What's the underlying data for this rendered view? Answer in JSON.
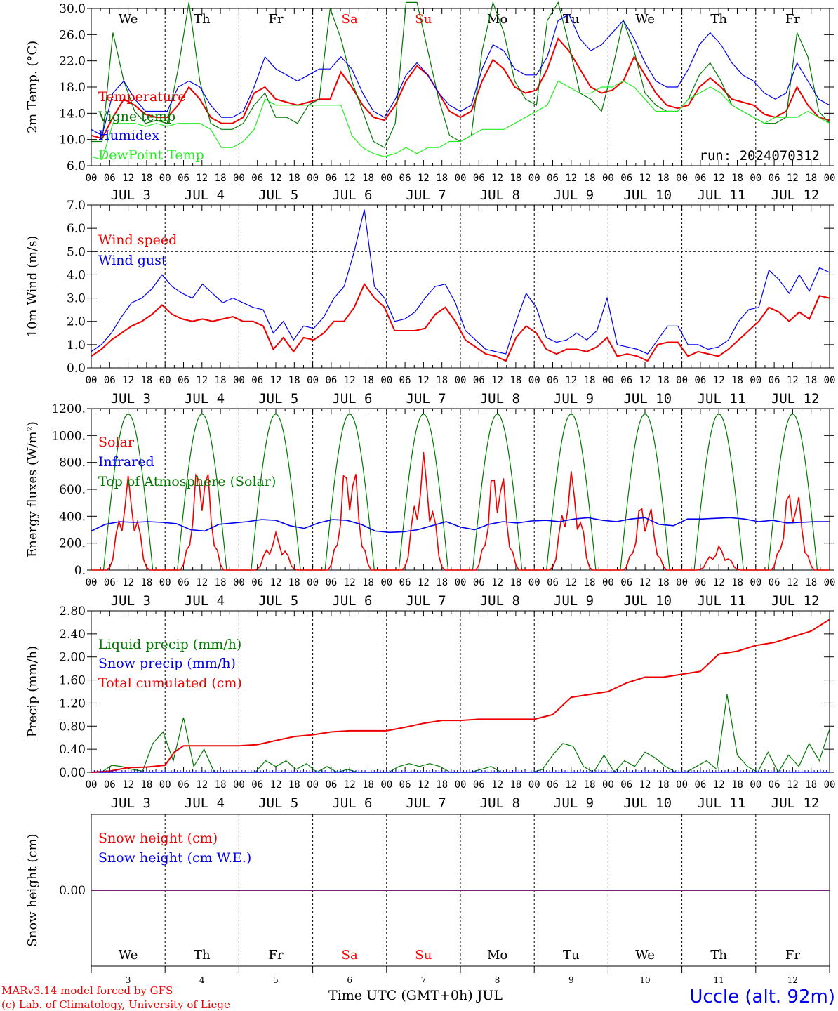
{
  "run_label": "run: 2024070312",
  "footer": {
    "model": "MARv3.14 model forced by GFS",
    "copyright": "(c) Lab. of Climatology, University of Liege",
    "station": "Uccle (alt. 92m)",
    "xaxis": "Time UTC (GMT+0h) JUL"
  },
  "days": {
    "dates": [
      "3",
      "4",
      "5",
      "6",
      "7",
      "8",
      "9",
      "10",
      "11",
      "12"
    ],
    "weekdays": [
      "We",
      "Th",
      "Fr",
      "Sa",
      "Su",
      "Mo",
      "Tu",
      "We",
      "Th",
      "Fr"
    ],
    "weekend_color": "#ff0000",
    "date_labels": [
      "JUL  3",
      "JUL  4",
      "JUL  5",
      "JUL  6",
      "JUL  7",
      "JUL  8",
      "JUL  9",
      "JUL 10",
      "JUL 11",
      "JUL 12"
    ],
    "hour_labels": [
      "00",
      "06",
      "12",
      "18"
    ],
    "end_label": "00"
  },
  "colors": {
    "red": "#ee0000",
    "green": "#007700",
    "blue": "#0000ee",
    "lightgreen": "#22ee22",
    "purple": "#772277"
  },
  "chart_data": [
    {
      "type": "line",
      "ylabel": "2m Temp. (°C)",
      "ylim": [
        6,
        32
      ],
      "yticks": [
        "6.0",
        "10.0",
        "14.0",
        "18.0",
        "22.0",
        "26.0",
        "30.0"
      ],
      "grid": "vertical dotted at 00 UTC",
      "legend_placement": "top-left",
      "x_hours": [
        0,
        6,
        9,
        12,
        15,
        18,
        21,
        24,
        27,
        30,
        33,
        36,
        39,
        42,
        45,
        48,
        51,
        54,
        57,
        60,
        63,
        66,
        69,
        72,
        75,
        78,
        81,
        84,
        87,
        90,
        93,
        96,
        99,
        102,
        105,
        108,
        111,
        114,
        117,
        120,
        123,
        126,
        129,
        132,
        135,
        138,
        141,
        144,
        147,
        150,
        153,
        156,
        159,
        162,
        165,
        168,
        171,
        174,
        177,
        180,
        183,
        186,
        189,
        192,
        195,
        198,
        201,
        204,
        207,
        210,
        213,
        216,
        219,
        222,
        225,
        228,
        231,
        234,
        237,
        240
      ],
      "series": [
        {
          "name": "Temperature",
          "color": "red",
          "values": [
            11,
            10.5,
            14,
            17,
            16,
            14.5,
            14,
            14,
            16,
            19,
            17,
            14,
            13,
            13,
            14,
            18,
            19,
            17,
            16.5,
            16,
            16.5,
            17,
            17,
            21.5,
            19,
            16,
            14,
            13.5,
            16,
            20,
            22.5,
            21,
            18,
            15,
            14,
            15,
            20,
            23.5,
            22,
            19,
            18,
            18.5,
            22,
            27,
            25,
            22,
            19,
            18,
            18.5,
            20,
            24,
            21,
            18,
            16,
            15.5,
            16,
            19,
            20.5,
            19,
            17,
            16.5,
            16,
            14.5,
            14,
            15,
            19,
            16,
            14,
            13.5
          ]
        },
        {
          "name": "Vigne temp",
          "color": "green",
          "values": [
            10,
            10,
            28,
            20,
            15,
            13,
            13.5,
            13,
            22,
            33,
            20,
            13,
            12,
            12,
            13,
            16,
            18,
            14,
            14,
            13,
            16,
            17,
            32,
            27,
            20,
            15,
            10,
            9,
            13,
            33,
            33,
            25,
            17,
            11,
            10,
            11,
            25,
            33,
            28,
            20,
            17,
            16,
            30,
            33,
            26,
            18,
            17,
            15,
            22,
            30,
            25,
            18,
            16,
            15,
            15,
            17,
            21,
            23,
            20,
            16,
            15,
            14,
            13,
            13,
            14,
            28,
            24,
            15,
            13
          ]
        },
        {
          "name": "Humidex",
          "color": "blue",
          "values": [
            12,
            11,
            18,
            20,
            17,
            15,
            15,
            15,
            19,
            20,
            19,
            16,
            14,
            14,
            15,
            19,
            24,
            22,
            21,
            20,
            21,
            22,
            22,
            24,
            22,
            18,
            15,
            14,
            17,
            21,
            23,
            21,
            18,
            16,
            15,
            16,
            22,
            26,
            25,
            22,
            21,
            21,
            24,
            30,
            31,
            27,
            25,
            26,
            28,
            30,
            27,
            23,
            20,
            19,
            19,
            22,
            26,
            28,
            26,
            23,
            21,
            20,
            18,
            17,
            18,
            23,
            20,
            17,
            16
          ]
        },
        {
          "name": "DewPoint Temp",
          "color": "lightgreen",
          "values": [
            7.5,
            7,
            13,
            13,
            13,
            12.5,
            13,
            12.5,
            13,
            13,
            13,
            12,
            9,
            9,
            10,
            12,
            17,
            16,
            16,
            16,
            16,
            16,
            16,
            16,
            11,
            9,
            8,
            7.5,
            8,
            9,
            8,
            9,
            9,
            10,
            10,
            11,
            12,
            12,
            12,
            13,
            14,
            15,
            16,
            20,
            19,
            18,
            18,
            19,
            19,
            20,
            19,
            17,
            15,
            15,
            15,
            17,
            18,
            19,
            18,
            16,
            15,
            14,
            13,
            14,
            14,
            14,
            15,
            14,
            13
          ]
        }
      ]
    },
    {
      "type": "line",
      "ylabel": "10m Wind (m/s)",
      "ylim": [
        0,
        7
      ],
      "yticks": [
        "0.0",
        "1.0",
        "2.0",
        "3.0",
        "4.0",
        "5.0",
        "6.0",
        "7.0"
      ],
      "hline": 5,
      "legend_placement": "top-left",
      "series": [
        {
          "name": "Wind speed",
          "color": "red",
          "values": [
            0.5,
            0.8,
            1.2,
            1.5,
            1.8,
            2.0,
            2.3,
            2.7,
            2.3,
            2.1,
            2.0,
            2.1,
            2.0,
            2.1,
            2.2,
            2.0,
            2.0,
            1.8,
            0.8,
            1.3,
            0.7,
            1.3,
            1.2,
            1.5,
            2.0,
            2.0,
            2.6,
            3.6,
            3.0,
            2.6,
            1.6,
            1.6,
            1.6,
            1.7,
            2.3,
            2.6,
            2.0,
            1.2,
            0.9,
            0.6,
            0.5,
            0.3,
            1.3,
            1.8,
            1.5,
            0.8,
            0.6,
            0.8,
            0.8,
            0.7,
            0.9,
            1.3,
            0.5,
            0.6,
            0.5,
            0.3,
            1.0,
            1.1,
            1.1,
            0.5,
            0.7,
            0.6,
            0.5,
            0.8,
            1.2,
            1.6,
            2.0,
            2.6,
            2.4,
            2.0,
            2.4,
            2.1,
            3.1,
            3.0
          ]
        },
        {
          "name": "Wind gust",
          "color": "blue",
          "values": [
            0.7,
            1.0,
            1.5,
            2.2,
            2.8,
            3.0,
            3.4,
            4.0,
            3.5,
            3.2,
            3.0,
            3.6,
            3.2,
            2.8,
            3.0,
            2.8,
            2.6,
            2.5,
            1.5,
            2.0,
            1.2,
            1.8,
            1.7,
            2.2,
            3.0,
            3.5,
            5.0,
            6.8,
            3.5,
            3.0,
            2.0,
            2.1,
            2.4,
            3.0,
            3.5,
            3.6,
            2.8,
            1.6,
            1.2,
            0.8,
            0.7,
            0.6,
            2.0,
            3.2,
            2.6,
            1.3,
            1.1,
            1.2,
            1.5,
            1.2,
            1.6,
            3.0,
            1.0,
            0.9,
            0.8,
            0.6,
            1.2,
            1.8,
            1.8,
            1.0,
            1.0,
            0.8,
            0.9,
            1.2,
            2.0,
            2.5,
            2.6,
            4.2,
            3.8,
            3.2,
            4.0,
            3.3,
            4.3,
            4.1
          ]
        }
      ]
    },
    {
      "type": "line",
      "ylabel": "Energy fluxes (W/m²)",
      "ylim": [
        0,
        1200
      ],
      "yticks": [
        "0.",
        "200.",
        "400.",
        "600.",
        "800.",
        "1000.",
        "1200."
      ],
      "legend_placement": "top-left",
      "series": [
        {
          "name": "Solar",
          "color": "red",
          "peaks": [
            700,
            880,
            280,
            880,
            880,
            840,
            740,
            560,
            180,
            670
          ]
        },
        {
          "name": "Infrared",
          "color": "blue",
          "values": [
            290,
            340,
            360,
            355,
            360,
            355,
            345,
            300,
            290,
            340,
            350,
            360,
            375,
            370,
            330,
            310,
            350,
            375,
            370,
            340,
            290,
            280,
            285,
            300,
            330,
            360,
            320,
            300,
            340,
            360,
            350,
            365,
            370,
            360,
            380,
            390,
            370,
            360,
            380,
            390,
            340,
            330,
            380,
            380,
            385,
            390,
            380,
            360,
            370,
            350,
            355,
            360,
            360
          ]
        },
        {
          "name": "Top of Atmosphere (Solar)",
          "color": "green",
          "peak": 1160
        }
      ]
    },
    {
      "type": "line",
      "ylabel": "Precip (mm/h)",
      "ylim": [
        0,
        2.8
      ],
      "yticks": [
        "0.00",
        "0.40",
        "0.80",
        "1.20",
        "1.60",
        "2.00",
        "2.40",
        "2.80"
      ],
      "legend_placement": "top-left",
      "series": [
        {
          "name": "Liquid precip (mm/h)",
          "color": "green",
          "values": [
            0,
            0,
            0.12,
            0.1,
            0.05,
            0.02,
            0.5,
            0.7,
            0.2,
            0.95,
            0.1,
            0.4,
            0,
            0,
            0,
            0,
            0,
            0.2,
            0.1,
            0.2,
            0.05,
            0.15,
            0,
            0.1,
            0,
            0.05,
            0,
            0,
            0,
            0,
            0.1,
            0.15,
            0.1,
            0.15,
            0.1,
            0,
            0,
            0,
            0.05,
            0.1,
            0,
            0,
            0,
            0,
            0.05,
            0.3,
            0.5,
            0.45,
            0.1,
            0,
            0.3,
            0,
            0.2,
            0.1,
            0.35,
            0.25,
            0.1,
            0,
            0,
            0.1,
            0.2,
            0.05,
            1.35,
            0.3,
            0.1,
            0,
            0.35,
            0,
            0.3,
            0.1,
            0.5,
            0.2,
            0.75
          ]
        },
        {
          "name": "Snow precip (mm/h)",
          "color": "blue",
          "values": [
            0,
            0
          ]
        },
        {
          "name": "Total cumulated (cm)",
          "color": "red",
          "x_hours": [
            0,
            6,
            12,
            18,
            24,
            27,
            30,
            36,
            42,
            48,
            54,
            60,
            66,
            72,
            78,
            84,
            90,
            96,
            102,
            108,
            114,
            120,
            126,
            132,
            138,
            144,
            150,
            156,
            162,
            168,
            174,
            180,
            186,
            192,
            198,
            204,
            210,
            216,
            222,
            228,
            234,
            240
          ],
          "values": [
            0,
            0.02,
            0.08,
            0.09,
            0.12,
            0.35,
            0.46,
            0.46,
            0.46,
            0.46,
            0.48,
            0.55,
            0.62,
            0.65,
            0.7,
            0.72,
            0.72,
            0.72,
            0.78,
            0.85,
            0.9,
            0.9,
            0.92,
            0.92,
            0.92,
            0.92,
            1.0,
            1.3,
            1.35,
            1.4,
            1.55,
            1.65,
            1.65,
            1.7,
            1.75,
            2.05,
            2.1,
            2.2,
            2.25,
            2.35,
            2.45,
            2.65
          ]
        }
      ]
    },
    {
      "type": "line",
      "ylabel": "Snow height (cm)",
      "yticks": [
        "0.00"
      ],
      "legend_placement": "top-left",
      "series": [
        {
          "name": "Snow height (cm)",
          "color": "red",
          "values": [
            0,
            0
          ]
        },
        {
          "name": "Snow height (cm W.E.)",
          "color": "blue",
          "values": [
            0,
            0
          ]
        }
      ]
    }
  ]
}
